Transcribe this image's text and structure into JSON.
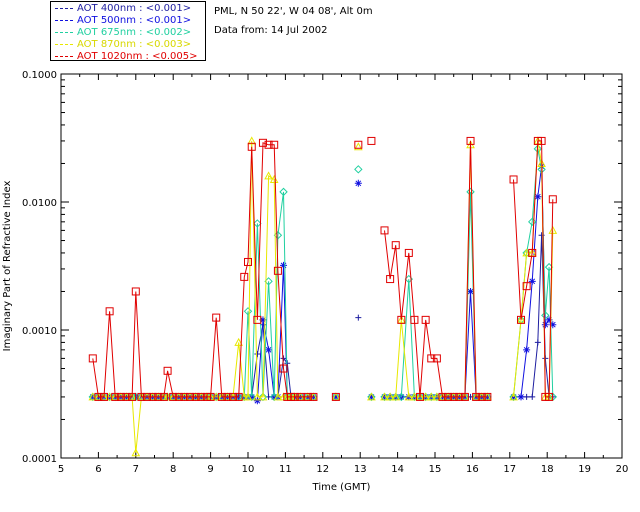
{
  "legend": [
    {
      "label": "AOT  400nm : <0.001>",
      "color": "#1e1ea0"
    },
    {
      "label": "AOT  500nm : <0.001>",
      "color": "#1010e0"
    },
    {
      "label": "AOT  675nm : <0.002>",
      "color": "#20d0a0"
    },
    {
      "label": "AOT  870nm : <0.003>",
      "color": "#e8e800"
    },
    {
      "label": "AOT 1020nm : <0.005>",
      "color": "#e00000"
    }
  ],
  "info": {
    "site": "PML, N 50 22', W 04 08', Alt 0m",
    "date": "Data from: 14 Jul 2002"
  },
  "chart_data": {
    "type": "line",
    "title": "",
    "xlabel": "Time (GMT)",
    "ylabel": "Imaginary Part of Refractive Index",
    "yscale": "log",
    "xlim": [
      5,
      20
    ],
    "ylim": [
      0.0001,
      0.1
    ],
    "xticks": [
      5,
      6,
      7,
      8,
      9,
      10,
      11,
      12,
      13,
      14,
      15,
      16,
      17,
      18,
      19,
      20
    ],
    "yticks": [
      0.0001,
      0.001,
      0.01,
      0.1
    ],
    "ytick_labels": [
      "0.0001",
      "0.0010",
      "0.0100",
      "0.1000"
    ],
    "x": [
      5.85,
      6.0,
      6.15,
      6.3,
      6.45,
      6.6,
      6.75,
      6.9,
      7.0,
      7.15,
      7.3,
      7.45,
      7.6,
      7.75,
      7.85,
      8.0,
      8.15,
      8.3,
      8.45,
      8.6,
      8.75,
      8.9,
      9.0,
      9.15,
      9.3,
      9.45,
      9.6,
      9.75,
      9.9,
      10.0,
      10.1,
      10.25,
      10.4,
      10.55,
      10.7,
      10.8,
      10.95,
      11.05,
      11.15,
      11.25,
      11.4,
      11.6,
      11.75,
      12.35,
      12.95,
      13.3,
      13.65,
      13.8,
      13.95,
      14.1,
      14.3,
      14.45,
      14.6,
      14.75,
      14.9,
      15.05,
      15.2,
      15.35,
      15.5,
      15.65,
      15.8,
      15.95,
      16.1,
      16.25,
      16.4,
      17.1,
      17.3,
      17.45,
      17.6,
      17.75,
      17.85,
      17.95,
      18.05,
      18.15
    ],
    "breaks_after_index": [
      42,
      43,
      44,
      45,
      64
    ],
    "series": [
      {
        "name": "AOT  400nm",
        "color": "#1e1ea0",
        "marker": "plus",
        "values": [
          0.0003,
          0.0003,
          0.0003,
          0.0003,
          0.0003,
          0.0003,
          0.0003,
          0.0003,
          0.0003,
          0.0003,
          0.0003,
          0.0003,
          0.0003,
          0.0003,
          0.0003,
          0.0003,
          0.0003,
          0.0003,
          0.0003,
          0.0003,
          0.0003,
          0.0003,
          0.0003,
          0.0003,
          0.0003,
          0.0003,
          0.0003,
          0.0003,
          0.0003,
          0.0003,
          0.0003,
          0.00065,
          0.0011,
          0.0003,
          0.0003,
          0.0003,
          0.0006,
          0.00055,
          0.0003,
          0.0003,
          0.0003,
          0.0003,
          0.0003,
          0.0003,
          0.00125,
          0.0003,
          0.0003,
          0.0003,
          0.0003,
          0.0003,
          0.0003,
          0.0003,
          0.0003,
          0.0003,
          0.0003,
          0.0003,
          0.0003,
          0.0003,
          0.0003,
          0.0003,
          0.0003,
          0.0003,
          0.0003,
          0.0003,
          0.0003,
          0.0003,
          0.0003,
          0.0003,
          0.0003,
          0.0008,
          0.0055,
          0.0006,
          0.0003,
          0.0003
        ]
      },
      {
        "name": "AOT  500nm",
        "color": "#1010e0",
        "marker": "star",
        "values": [
          0.0003,
          0.0003,
          0.0003,
          0.0003,
          0.0003,
          0.0003,
          0.0003,
          0.0003,
          0.0003,
          0.0003,
          0.0003,
          0.0003,
          0.0003,
          0.0003,
          0.0003,
          0.0003,
          0.0003,
          0.0003,
          0.0003,
          0.0003,
          0.0003,
          0.0003,
          0.0003,
          0.0003,
          0.0003,
          0.0003,
          0.0003,
          0.0003,
          0.0003,
          0.0003,
          0.0003,
          0.00028,
          0.0012,
          0.0007,
          0.0003,
          0.0003,
          0.0032,
          0.0003,
          0.0003,
          0.0003,
          0.0003,
          0.0003,
          0.0003,
          0.0003,
          0.014,
          0.0003,
          0.0003,
          0.0003,
          0.0003,
          0.0003,
          0.0003,
          0.0003,
          0.0003,
          0.0003,
          0.0003,
          0.0003,
          0.0003,
          0.0003,
          0.0003,
          0.0003,
          0.0003,
          0.002,
          0.0003,
          0.0003,
          0.0003,
          0.0003,
          0.0003,
          0.0007,
          0.0024,
          0.011,
          0.019,
          0.0011,
          0.0012,
          0.0011
        ]
      },
      {
        "name": "AOT  675nm",
        "color": "#20d0a0",
        "marker": "diamond",
        "values": [
          0.0003,
          0.0003,
          0.0003,
          0.0003,
          0.0003,
          0.0003,
          0.0003,
          0.0003,
          0.0003,
          0.0003,
          0.0003,
          0.0003,
          0.0003,
          0.0003,
          0.0003,
          0.0003,
          0.0003,
          0.0003,
          0.0003,
          0.0003,
          0.0003,
          0.0003,
          0.0003,
          0.0003,
          0.0003,
          0.0003,
          0.0003,
          0.0003,
          0.0003,
          0.0014,
          0.0003,
          0.0068,
          0.0003,
          0.0024,
          0.0003,
          0.0055,
          0.012,
          0.0003,
          0.0003,
          0.0003,
          0.0003,
          0.0003,
          0.0003,
          0.0003,
          0.018,
          0.0003,
          0.0003,
          0.0003,
          0.0003,
          0.0003,
          0.0025,
          0.0003,
          0.0003,
          0.0003,
          0.0003,
          0.0003,
          0.0003,
          0.0003,
          0.0003,
          0.0003,
          0.0003,
          0.012,
          0.0003,
          0.0003,
          0.0003,
          0.0003,
          0.0012,
          0.004,
          0.007,
          0.026,
          0.018,
          0.0013,
          0.0031,
          0.0003
        ]
      },
      {
        "name": "AOT  870nm",
        "color": "#e8e800",
        "marker": "triangle",
        "values": [
          0.0003,
          0.0003,
          0.0003,
          0.0003,
          0.0003,
          0.0003,
          0.0003,
          0.0003,
          0.00011,
          0.0003,
          0.0003,
          0.0003,
          0.0003,
          0.0003,
          0.0003,
          0.0003,
          0.0003,
          0.0003,
          0.0003,
          0.0003,
          0.0003,
          0.0003,
          0.0003,
          0.0003,
          0.0003,
          0.0003,
          0.0003,
          0.0008,
          0.0003,
          0.0003,
          0.03,
          0.0003,
          0.0003,
          0.016,
          0.015,
          0.0003,
          0.0003,
          0.0003,
          0.0003,
          0.0003,
          0.0003,
          0.0003,
          0.0003,
          0.0003,
          0.027,
          0.0003,
          0.0003,
          0.0003,
          0.0003,
          0.0012,
          0.0003,
          0.0003,
          0.0003,
          0.0003,
          0.0003,
          0.0003,
          0.0003,
          0.0003,
          0.0003,
          0.0003,
          0.0003,
          0.028,
          0.0003,
          0.0003,
          0.0003,
          0.0003,
          0.0012,
          0.004,
          0.004,
          0.03,
          0.02,
          0.0003,
          0.0003,
          0.006
        ]
      },
      {
        "name": "AOT 1020nm",
        "color": "#e00000",
        "marker": "square",
        "values": [
          0.0006,
          0.0003,
          0.0003,
          0.0014,
          0.0003,
          0.0003,
          0.0003,
          0.0003,
          0.002,
          0.0003,
          0.0003,
          0.0003,
          0.0003,
          0.0003,
          0.00048,
          0.0003,
          0.0003,
          0.0003,
          0.0003,
          0.0003,
          0.0003,
          0.0003,
          0.0003,
          0.00125,
          0.0003,
          0.0003,
          0.0003,
          0.0003,
          0.0026,
          0.0034,
          0.027,
          0.0012,
          0.029,
          0.028,
          0.028,
          0.0029,
          0.0005,
          0.0003,
          0.0003,
          0.0003,
          0.0003,
          0.0003,
          0.0003,
          0.0003,
          0.028,
          0.03,
          0.006,
          0.0025,
          0.0046,
          0.0012,
          0.004,
          0.0012,
          0.0003,
          0.0012,
          0.0006,
          0.0006,
          0.0003,
          0.0003,
          0.0003,
          0.0003,
          0.0003,
          0.03,
          0.0003,
          0.0003,
          0.0003,
          0.015,
          0.0012,
          0.0022,
          0.004,
          0.03,
          0.03,
          0.0003,
          0.0003,
          0.0105
        ]
      }
    ]
  }
}
